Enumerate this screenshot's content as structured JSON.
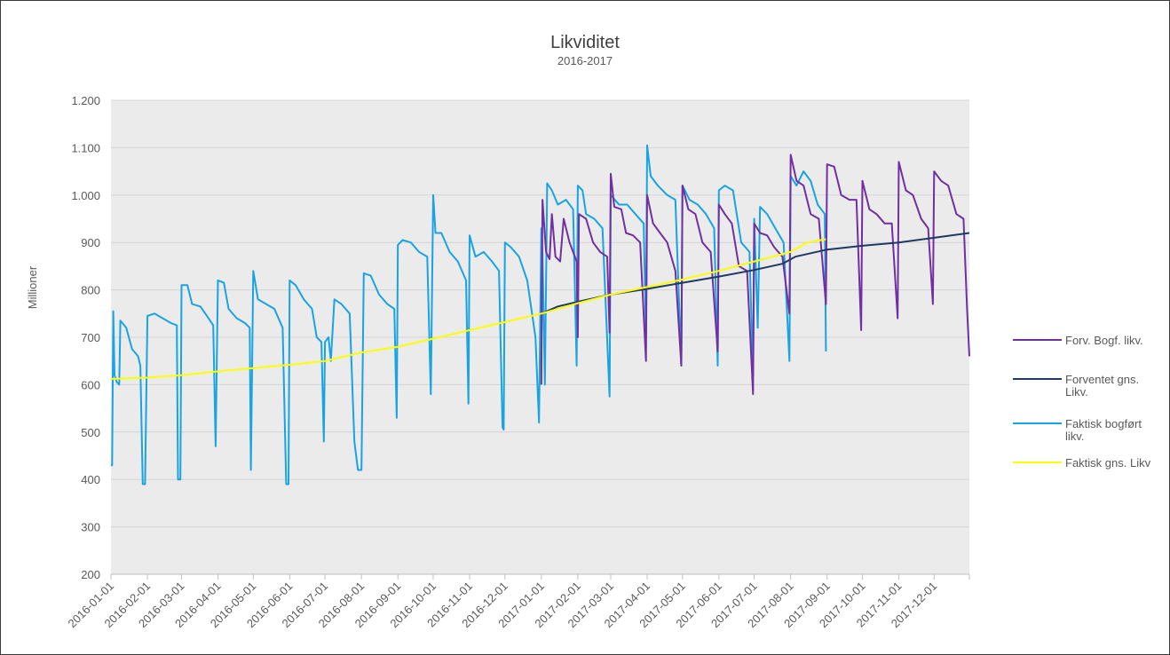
{
  "chart_data": {
    "type": "line",
    "title": "Likviditet",
    "subtitle": "2016-2017",
    "ylabel": "Millioner",
    "xlabel": "",
    "ylim": [
      200,
      1200
    ],
    "yticks": [
      200,
      300,
      400,
      500,
      600,
      700,
      800,
      900,
      1000,
      1100,
      1200
    ],
    "ytick_labels": [
      "200",
      "300",
      "400",
      "500",
      "600",
      "700",
      "800",
      "900",
      "1.000",
      "1.100",
      "1.200"
    ],
    "xlim": [
      "2016-01-01",
      "2017-12-31"
    ],
    "xtick_labels": [
      "2016-01-01",
      "2016-02-01",
      "2016-03-01",
      "2016-04-01",
      "2016-05-01",
      "2016-06-01",
      "2016-07-01",
      "2016-08-01",
      "2016-09-01",
      "2016-10-01",
      "2016-11-01",
      "2016-12-01",
      "2017-01-01",
      "2017-02-01",
      "2017-03-01",
      "2017-04-01",
      "2017-05-01",
      "2017-06-01",
      "2017-07-01",
      "2017-08-01",
      "2017-09-01",
      "2017-10-01",
      "2017-11-01",
      "2017-12-01"
    ],
    "grid": true,
    "legend_position": "right",
    "series": [
      {
        "name": "Forv. Bogf. likv.",
        "color": "#7030a0",
        "points": [
          [
            "2017-01-01",
            600
          ],
          [
            "2017-01-02",
            990
          ],
          [
            "2017-01-05",
            880
          ],
          [
            "2017-01-08",
            865
          ],
          [
            "2017-01-10",
            960
          ],
          [
            "2017-01-13",
            870
          ],
          [
            "2017-01-17",
            860
          ],
          [
            "2017-01-20",
            950
          ],
          [
            "2017-01-25",
            900
          ],
          [
            "2017-01-28",
            880
          ],
          [
            "2017-01-31",
            860
          ],
          [
            "2017-02-01",
            700
          ],
          [
            "2017-02-02",
            960
          ],
          [
            "2017-02-08",
            950
          ],
          [
            "2017-02-14",
            900
          ],
          [
            "2017-02-20",
            880
          ],
          [
            "2017-02-26",
            870
          ],
          [
            "2017-02-28",
            710
          ],
          [
            "2017-03-01",
            1045
          ],
          [
            "2017-03-04",
            975
          ],
          [
            "2017-03-10",
            970
          ],
          [
            "2017-03-14",
            920
          ],
          [
            "2017-03-20",
            915
          ],
          [
            "2017-03-26",
            900
          ],
          [
            "2017-03-31",
            650
          ],
          [
            "2017-04-01",
            1000
          ],
          [
            "2017-04-06",
            940
          ],
          [
            "2017-04-12",
            920
          ],
          [
            "2017-04-18",
            900
          ],
          [
            "2017-04-25",
            840
          ],
          [
            "2017-04-30",
            640
          ],
          [
            "2017-05-01",
            1020
          ],
          [
            "2017-05-06",
            970
          ],
          [
            "2017-05-12",
            960
          ],
          [
            "2017-05-18",
            900
          ],
          [
            "2017-05-25",
            880
          ],
          [
            "2017-05-31",
            670
          ],
          [
            "2017-06-01",
            980
          ],
          [
            "2017-06-06",
            960
          ],
          [
            "2017-06-12",
            940
          ],
          [
            "2017-06-18",
            850
          ],
          [
            "2017-06-25",
            840
          ],
          [
            "2017-06-30",
            580
          ],
          [
            "2017-07-01",
            940
          ],
          [
            "2017-07-06",
            920
          ],
          [
            "2017-07-12",
            915
          ],
          [
            "2017-07-18",
            890
          ],
          [
            "2017-07-25",
            870
          ],
          [
            "2017-07-31",
            750
          ],
          [
            "2017-08-01",
            1085
          ],
          [
            "2017-08-06",
            1030
          ],
          [
            "2017-08-12",
            1020
          ],
          [
            "2017-08-18",
            960
          ],
          [
            "2017-08-25",
            950
          ],
          [
            "2017-08-31",
            770
          ],
          [
            "2017-09-01",
            1065
          ],
          [
            "2017-09-07",
            1060
          ],
          [
            "2017-09-13",
            1000
          ],
          [
            "2017-09-20",
            990
          ],
          [
            "2017-09-26",
            990
          ],
          [
            "2017-09-30",
            715
          ],
          [
            "2017-10-01",
            1030
          ],
          [
            "2017-10-07",
            970
          ],
          [
            "2017-10-13",
            960
          ],
          [
            "2017-10-20",
            940
          ],
          [
            "2017-10-26",
            940
          ],
          [
            "2017-10-31",
            740
          ],
          [
            "2017-11-01",
            1070
          ],
          [
            "2017-11-07",
            1010
          ],
          [
            "2017-11-13",
            1000
          ],
          [
            "2017-11-20",
            950
          ],
          [
            "2017-11-26",
            930
          ],
          [
            "2017-11-30",
            770
          ],
          [
            "2017-12-01",
            1050
          ],
          [
            "2017-12-07",
            1030
          ],
          [
            "2017-12-13",
            1020
          ],
          [
            "2017-12-20",
            960
          ],
          [
            "2017-12-26",
            950
          ],
          [
            "2017-12-29",
            760
          ],
          [
            "2017-12-31",
            660
          ]
        ]
      },
      {
        "name": "Forventet gns. Likv.",
        "color": "#1f3864",
        "points": [
          [
            "2017-01-01",
            750
          ],
          [
            "2017-01-15",
            765
          ],
          [
            "2017-02-01",
            775
          ],
          [
            "2017-03-01",
            790
          ],
          [
            "2017-04-01",
            802
          ],
          [
            "2017-05-01",
            815
          ],
          [
            "2017-06-01",
            828
          ],
          [
            "2017-07-01",
            842
          ],
          [
            "2017-07-25",
            855
          ],
          [
            "2017-08-05",
            870
          ],
          [
            "2017-09-01",
            885
          ],
          [
            "2017-10-01",
            893
          ],
          [
            "2017-11-01",
            900
          ],
          [
            "2017-12-01",
            910
          ],
          [
            "2017-12-31",
            920
          ]
        ]
      },
      {
        "name": "Faktisk bogført likv.",
        "color": "#19a3e0",
        "points": [
          [
            "2016-01-01",
            430
          ],
          [
            "2016-01-02",
            430
          ],
          [
            "2016-01-03",
            755
          ],
          [
            "2016-01-04",
            620
          ],
          [
            "2016-01-06",
            605
          ],
          [
            "2016-01-08",
            600
          ],
          [
            "2016-01-09",
            735
          ],
          [
            "2016-01-14",
            720
          ],
          [
            "2016-01-19",
            675
          ],
          [
            "2016-01-24",
            660
          ],
          [
            "2016-01-26",
            640
          ],
          [
            "2016-01-28",
            390
          ],
          [
            "2016-01-30",
            390
          ],
          [
            "2016-02-01",
            745
          ],
          [
            "2016-02-07",
            750
          ],
          [
            "2016-02-14",
            740
          ],
          [
            "2016-02-21",
            730
          ],
          [
            "2016-02-26",
            725
          ],
          [
            "2016-02-27",
            400
          ],
          [
            "2016-02-29",
            400
          ],
          [
            "2016-03-01",
            810
          ],
          [
            "2016-03-06",
            810
          ],
          [
            "2016-03-10",
            770
          ],
          [
            "2016-03-17",
            765
          ],
          [
            "2016-03-24",
            740
          ],
          [
            "2016-03-28",
            725
          ],
          [
            "2016-03-30",
            470
          ],
          [
            "2016-04-01",
            820
          ],
          [
            "2016-04-06",
            815
          ],
          [
            "2016-04-10",
            760
          ],
          [
            "2016-04-17",
            740
          ],
          [
            "2016-04-24",
            730
          ],
          [
            "2016-04-28",
            720
          ],
          [
            "2016-04-29",
            420
          ],
          [
            "2016-05-01",
            840
          ],
          [
            "2016-05-05",
            780
          ],
          [
            "2016-05-12",
            770
          ],
          [
            "2016-05-19",
            760
          ],
          [
            "2016-05-26",
            720
          ],
          [
            "2016-05-29",
            390
          ],
          [
            "2016-05-31",
            390
          ],
          [
            "2016-06-01",
            820
          ],
          [
            "2016-06-06",
            810
          ],
          [
            "2016-06-13",
            780
          ],
          [
            "2016-06-20",
            760
          ],
          [
            "2016-06-24",
            700
          ],
          [
            "2016-06-28",
            690
          ],
          [
            "2016-06-30",
            480
          ],
          [
            "2016-07-01",
            690
          ],
          [
            "2016-07-04",
            700
          ],
          [
            "2016-07-06",
            650
          ],
          [
            "2016-07-09",
            780
          ],
          [
            "2016-07-15",
            770
          ],
          [
            "2016-07-22",
            750
          ],
          [
            "2016-07-26",
            480
          ],
          [
            "2016-07-29",
            420
          ],
          [
            "2016-08-01",
            420
          ],
          [
            "2016-08-03",
            835
          ],
          [
            "2016-08-09",
            830
          ],
          [
            "2016-08-16",
            790
          ],
          [
            "2016-08-23",
            770
          ],
          [
            "2016-08-29",
            760
          ],
          [
            "2016-08-31",
            530
          ],
          [
            "2016-09-01",
            895
          ],
          [
            "2016-09-05",
            905
          ],
          [
            "2016-09-12",
            900
          ],
          [
            "2016-09-19",
            880
          ],
          [
            "2016-09-26",
            870
          ],
          [
            "2016-09-29",
            580
          ],
          [
            "2016-10-01",
            1000
          ],
          [
            "2016-10-03",
            920
          ],
          [
            "2016-10-08",
            920
          ],
          [
            "2016-10-15",
            880
          ],
          [
            "2016-10-22",
            860
          ],
          [
            "2016-10-29",
            820
          ],
          [
            "2016-10-31",
            560
          ],
          [
            "2016-11-01",
            915
          ],
          [
            "2016-11-06",
            870
          ],
          [
            "2016-11-13",
            880
          ],
          [
            "2016-11-20",
            860
          ],
          [
            "2016-11-26",
            840
          ],
          [
            "2016-11-29",
            510
          ],
          [
            "2016-11-30",
            505
          ],
          [
            "2016-12-01",
            900
          ],
          [
            "2016-12-06",
            890
          ],
          [
            "2016-12-13",
            870
          ],
          [
            "2016-12-20",
            820
          ],
          [
            "2016-12-27",
            700
          ],
          [
            "2016-12-30",
            520
          ],
          [
            "2017-01-01",
            930
          ],
          [
            "2017-01-02",
            880
          ],
          [
            "2017-01-04",
            600
          ],
          [
            "2017-01-06",
            1025
          ],
          [
            "2017-01-10",
            1010
          ],
          [
            "2017-01-15",
            980
          ],
          [
            "2017-01-22",
            990
          ],
          [
            "2017-01-28",
            970
          ],
          [
            "2017-01-31",
            640
          ],
          [
            "2017-02-01",
            1020
          ],
          [
            "2017-02-05",
            1010
          ],
          [
            "2017-02-08",
            960
          ],
          [
            "2017-02-15",
            950
          ],
          [
            "2017-02-22",
            930
          ],
          [
            "2017-02-28",
            575
          ],
          [
            "2017-03-01",
            1000
          ],
          [
            "2017-03-08",
            980
          ],
          [
            "2017-03-15",
            980
          ],
          [
            "2017-03-22",
            960
          ],
          [
            "2017-03-29",
            940
          ],
          [
            "2017-03-31",
            700
          ],
          [
            "2017-04-01",
            1105
          ],
          [
            "2017-04-04",
            1040
          ],
          [
            "2017-04-10",
            1020
          ],
          [
            "2017-04-18",
            1000
          ],
          [
            "2017-04-25",
            990
          ],
          [
            "2017-04-30",
            640
          ],
          [
            "2017-05-01",
            1020
          ],
          [
            "2017-05-07",
            990
          ],
          [
            "2017-05-14",
            980
          ],
          [
            "2017-05-21",
            960
          ],
          [
            "2017-05-28",
            930
          ],
          [
            "2017-05-31",
            640
          ],
          [
            "2017-06-01",
            1010
          ],
          [
            "2017-06-06",
            1020
          ],
          [
            "2017-06-13",
            1010
          ],
          [
            "2017-06-20",
            900
          ],
          [
            "2017-06-27",
            880
          ],
          [
            "2017-06-30",
            620
          ],
          [
            "2017-07-01",
            950
          ],
          [
            "2017-07-04",
            720
          ],
          [
            "2017-07-06",
            975
          ],
          [
            "2017-07-12",
            960
          ],
          [
            "2017-07-19",
            930
          ],
          [
            "2017-07-26",
            900
          ],
          [
            "2017-07-31",
            650
          ],
          [
            "2017-08-01",
            1040
          ],
          [
            "2017-08-06",
            1020
          ],
          [
            "2017-08-12",
            1050
          ],
          [
            "2017-08-18",
            1030
          ],
          [
            "2017-08-24",
            980
          ],
          [
            "2017-08-30",
            960
          ],
          [
            "2017-08-31",
            670
          ]
        ]
      },
      {
        "name": "Faktisk gns. Likv",
        "color": "#ffff00",
        "points": [
          [
            "2016-01-01",
            612
          ],
          [
            "2016-02-01",
            615
          ],
          [
            "2016-03-01",
            620
          ],
          [
            "2016-04-01",
            628
          ],
          [
            "2016-05-01",
            635
          ],
          [
            "2016-06-01",
            642
          ],
          [
            "2016-07-01",
            650
          ],
          [
            "2016-08-01",
            668
          ],
          [
            "2016-09-01",
            680
          ],
          [
            "2016-10-01",
            697
          ],
          [
            "2016-11-01",
            715
          ],
          [
            "2016-12-01",
            732
          ],
          [
            "2017-01-01",
            750
          ],
          [
            "2017-02-01",
            772
          ],
          [
            "2017-03-01",
            790
          ],
          [
            "2017-04-01",
            806
          ],
          [
            "2017-05-01",
            822
          ],
          [
            "2017-06-01",
            840
          ],
          [
            "2017-07-01",
            860
          ],
          [
            "2017-08-01",
            880
          ],
          [
            "2017-08-15",
            900
          ],
          [
            "2017-08-31",
            907
          ]
        ]
      }
    ]
  }
}
